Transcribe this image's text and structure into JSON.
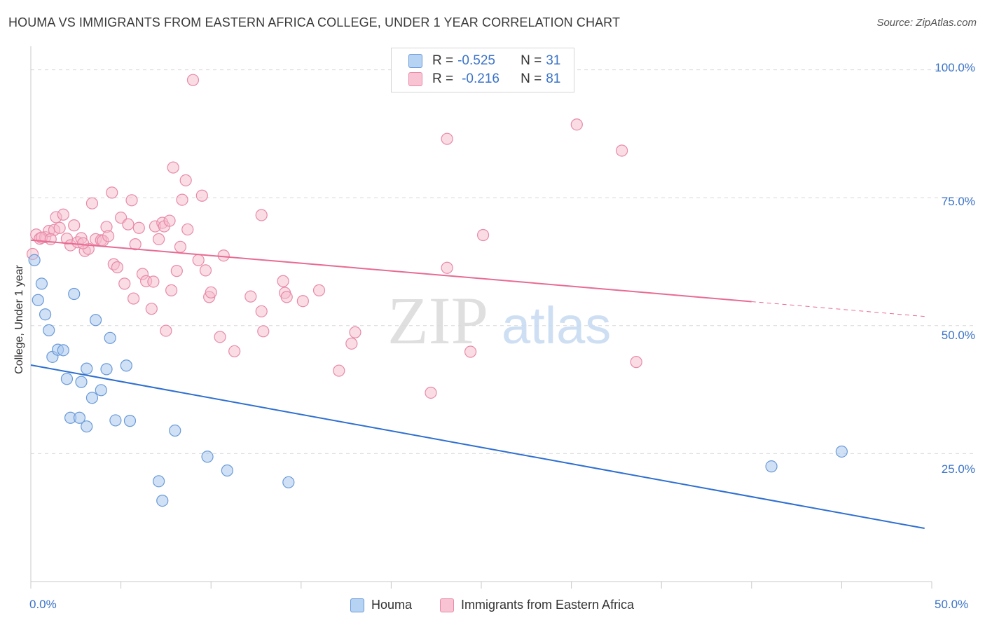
{
  "chart_data": {
    "type": "scatter",
    "title": "HOUMA VS IMMIGRANTS FROM EASTERN AFRICA COLLEGE, UNDER 1 YEAR CORRELATION CHART",
    "source": "Source: ZipAtlas.com",
    "ylabel": "College, Under 1 year",
    "xlim": [
      0,
      50
    ],
    "ylim": [
      0,
      103.5
    ],
    "x_tick_labels": [
      "0.0%",
      "50.0%"
    ],
    "y_ticks": [
      {
        "value": 100,
        "label": "100.0%"
      },
      {
        "value": 75,
        "label": "75.0%"
      },
      {
        "value": 50,
        "label": "50.0%"
      },
      {
        "value": 25,
        "label": "25.0%"
      }
    ],
    "watermark": "ZIPatlas",
    "legend": [
      {
        "name": "Houma",
        "r_label": "R = ",
        "r": "-0.525",
        "n_label": "N = ",
        "n": "31"
      },
      {
        "name": "Immigrants from Eastern Africa",
        "r_label": "R = ",
        "r": "-0.216",
        "n_label": "N = ",
        "n": "81"
      }
    ],
    "colors": {
      "houma_fill": "#a9c8ef",
      "houma_stroke": "#6a9ad8",
      "houma_line": "#2e6fd0",
      "imm_fill": "#f6b9cb",
      "imm_stroke": "#e88aa8",
      "imm_line": "#e86b93",
      "grid": "#d9d9d9",
      "axis_text": "#3b73c7"
    },
    "series": [
      {
        "name": "Houma",
        "trend": {
          "x0": 0,
          "y0": 42.3,
          "x1": 49.6,
          "y1": 10.4
        },
        "points": [
          [
            0.2,
            62.8
          ],
          [
            0.4,
            55.0
          ],
          [
            0.6,
            58.2
          ],
          [
            0.8,
            52.2
          ],
          [
            1.0,
            49.1
          ],
          [
            1.2,
            43.9
          ],
          [
            1.5,
            45.3
          ],
          [
            1.8,
            45.2
          ],
          [
            2.0,
            39.6
          ],
          [
            2.2,
            32.0
          ],
          [
            2.7,
            32.0
          ],
          [
            2.8,
            39.0
          ],
          [
            3.1,
            41.6
          ],
          [
            3.1,
            30.3
          ],
          [
            3.4,
            35.9
          ],
          [
            3.6,
            51.1
          ],
          [
            3.9,
            37.4
          ],
          [
            4.2,
            41.5
          ],
          [
            4.4,
            47.6
          ],
          [
            4.7,
            31.5
          ],
          [
            5.3,
            42.2
          ],
          [
            5.5,
            31.4
          ],
          [
            7.1,
            19.6
          ],
          [
            7.3,
            15.8
          ],
          [
            8.0,
            29.5
          ],
          [
            9.8,
            24.4
          ],
          [
            10.9,
            21.7
          ],
          [
            14.3,
            19.4
          ],
          [
            2.4,
            56.2
          ],
          [
            41.1,
            22.5
          ],
          [
            45.0,
            25.4
          ]
        ]
      },
      {
        "name": "Immigrants from Eastern Africa",
        "trend": {
          "x0": 0,
          "y0": 66.7,
          "x1": 40.0,
          "y1": 54.7,
          "dash_x1": 49.6,
          "dash_y1": 51.8
        },
        "points": [
          [
            0.1,
            64.0
          ],
          [
            0.3,
            67.8
          ],
          [
            0.5,
            67.0
          ],
          [
            0.8,
            67.3
          ],
          [
            1.0,
            68.5
          ],
          [
            1.3,
            68.7
          ],
          [
            1.4,
            71.2
          ],
          [
            1.6,
            69.1
          ],
          [
            1.8,
            71.7
          ],
          [
            2.0,
            67.0
          ],
          [
            2.2,
            65.7
          ],
          [
            2.4,
            69.6
          ],
          [
            2.6,
            66.3
          ],
          [
            2.8,
            67.1
          ],
          [
            3.0,
            64.6
          ],
          [
            3.2,
            65.0
          ],
          [
            3.4,
            73.9
          ],
          [
            3.6,
            66.9
          ],
          [
            3.9,
            66.7
          ],
          [
            4.0,
            66.6
          ],
          [
            4.2,
            69.3
          ],
          [
            4.3,
            67.5
          ],
          [
            4.5,
            76.0
          ],
          [
            4.6,
            62.0
          ],
          [
            4.8,
            61.4
          ],
          [
            5.0,
            71.1
          ],
          [
            5.2,
            58.2
          ],
          [
            5.4,
            69.8
          ],
          [
            5.6,
            74.5
          ],
          [
            5.7,
            55.3
          ],
          [
            5.8,
            65.9
          ],
          [
            6.0,
            69.1
          ],
          [
            6.2,
            60.1
          ],
          [
            6.4,
            58.7
          ],
          [
            6.7,
            53.3
          ],
          [
            6.8,
            58.6
          ],
          [
            6.9,
            69.4
          ],
          [
            7.1,
            66.9
          ],
          [
            7.3,
            70.1
          ],
          [
            7.4,
            69.4
          ],
          [
            7.5,
            49.0
          ],
          [
            7.7,
            70.5
          ],
          [
            7.8,
            56.9
          ],
          [
            7.9,
            80.9
          ],
          [
            8.1,
            60.7
          ],
          [
            8.3,
            65.4
          ],
          [
            8.4,
            74.6
          ],
          [
            8.6,
            78.4
          ],
          [
            8.7,
            68.8
          ],
          [
            9.0,
            98.0
          ],
          [
            9.3,
            62.8
          ],
          [
            9.5,
            75.4
          ],
          [
            9.7,
            60.8
          ],
          [
            9.9,
            55.6
          ],
          [
            10.0,
            56.5
          ],
          [
            10.5,
            47.8
          ],
          [
            10.7,
            63.7
          ],
          [
            11.3,
            45.0
          ],
          [
            12.2,
            55.7
          ],
          [
            12.8,
            71.6
          ],
          [
            12.8,
            52.8
          ],
          [
            12.9,
            48.9
          ],
          [
            14.0,
            58.7
          ],
          [
            14.1,
            56.4
          ],
          [
            14.2,
            55.6
          ],
          [
            15.1,
            54.8
          ],
          [
            16.0,
            56.9
          ],
          [
            17.1,
            41.2
          ],
          [
            17.8,
            46.5
          ],
          [
            18.0,
            48.7
          ],
          [
            22.2,
            36.9
          ],
          [
            23.1,
            86.5
          ],
          [
            23.1,
            61.3
          ],
          [
            24.4,
            44.9
          ],
          [
            25.1,
            67.7
          ],
          [
            30.3,
            89.3
          ],
          [
            32.8,
            84.2
          ],
          [
            33.6,
            42.9
          ],
          [
            0.6,
            67.2
          ],
          [
            1.1,
            66.9
          ],
          [
            2.9,
            66.1
          ]
        ]
      }
    ]
  }
}
